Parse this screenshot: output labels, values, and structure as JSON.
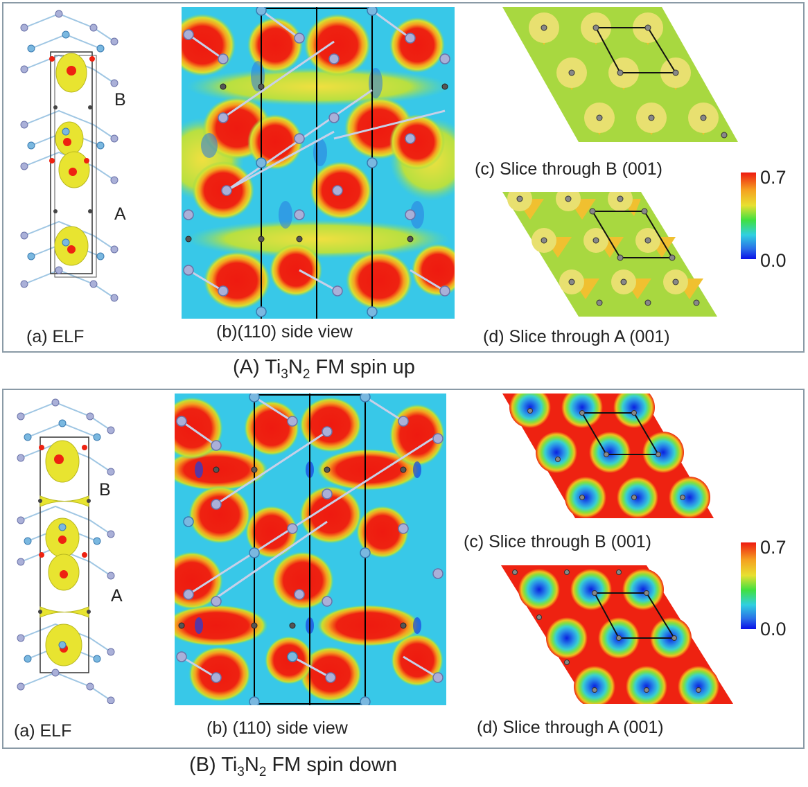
{
  "figure": {
    "panel_A": {
      "caption_prefix": "(A) Ti",
      "caption_sub1": "3",
      "caption_mid": "N",
      "caption_sub2": "2",
      "caption_suffix": " FM spin up",
      "label_a": "(a) ELF",
      "label_b": "(b)(110) side view",
      "label_c": "(c) Slice through B (001)",
      "label_d": "(d) Slice through A (001)",
      "layer_B": "B",
      "layer_A": "A",
      "scale_max": "0.7",
      "scale_min": "0.0"
    },
    "panel_B": {
      "caption_prefix": "(B) Ti",
      "caption_sub1": "3",
      "caption_mid": "N",
      "caption_sub2": "2",
      "caption_suffix": " FM spin down",
      "label_a": "(a) ELF",
      "label_b": "(b) (110) side view",
      "label_c": "(c) Slice through B (001)",
      "label_d": "(d) Slice through A (001)",
      "layer_B": "B",
      "layer_A": "A",
      "scale_max": "0.7",
      "scale_min": "0.0"
    },
    "colors": {
      "elf_high": "#ee2211",
      "elf_mid": "#e6e62a",
      "elf_low": "#0a1ee6",
      "background_cyan": "#38c8e8",
      "panel_border": "#8a9aa6"
    }
  }
}
